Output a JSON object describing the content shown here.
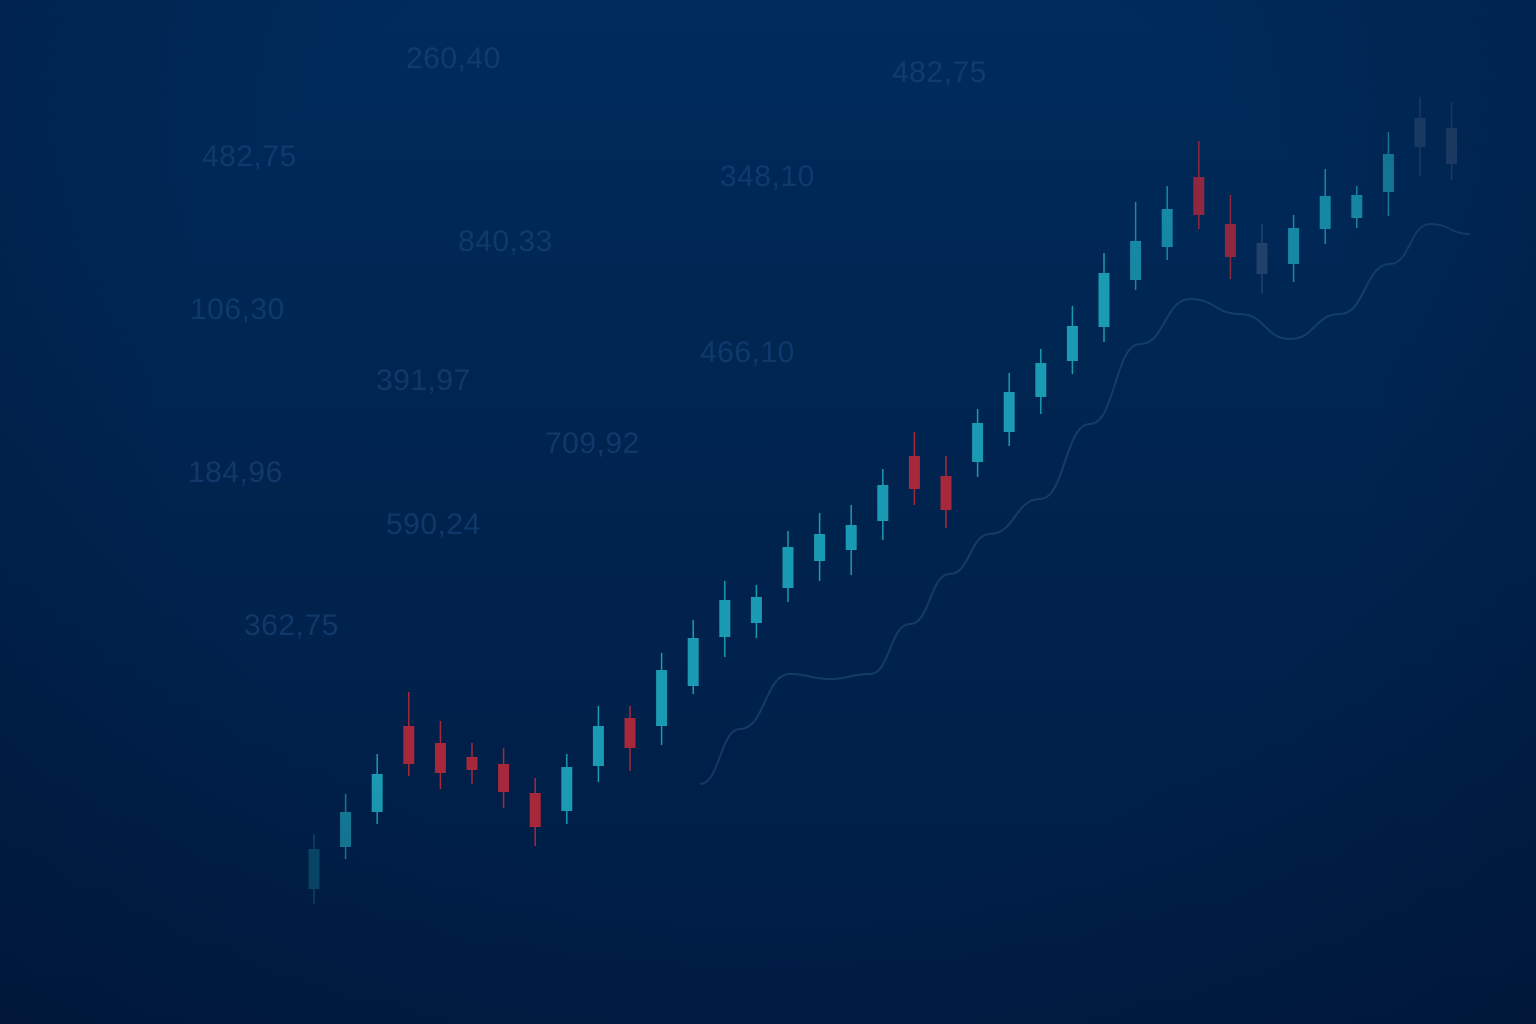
{
  "colors": {
    "up": "#1b9ab3",
    "down": "#a8283b",
    "faded": "#27456e",
    "trend": "#1f4d7c"
  },
  "background_numbers": [
    "260,40",
    "482,75",
    "482,75",
    "348,10",
    "840,33",
    "106,30",
    "466,10",
    "391,97",
    "709,92",
    "184,96",
    "590,24",
    "362,75"
  ],
  "chart_data": {
    "type": "candlestick",
    "title": "",
    "xlabel": "",
    "ylabel": "",
    "grid": false,
    "legend": "none",
    "ylim": [
      0,
      1024
    ],
    "candles": [
      {
        "open": 135,
        "close": 175,
        "high": 190,
        "low": 120
      },
      {
        "open": 177,
        "close": 212,
        "high": 230,
        "low": 165
      },
      {
        "open": 212,
        "close": 250,
        "high": 270,
        "low": 200
      },
      {
        "open": 298,
        "close": 260,
        "high": 332,
        "low": 248
      },
      {
        "open": 281,
        "close": 251,
        "high": 303,
        "low": 235
      },
      {
        "open": 267,
        "close": 254,
        "high": 281,
        "low": 240
      },
      {
        "open": 260,
        "close": 232,
        "high": 276,
        "low": 216
      },
      {
        "open": 231,
        "close": 197,
        "high": 246,
        "low": 178
      },
      {
        "open": 213,
        "close": 257,
        "high": 270,
        "low": 200
      },
      {
        "open": 258,
        "close": 298,
        "high": 318,
        "low": 242
      },
      {
        "open": 306,
        "close": 276,
        "high": 318,
        "low": 253
      },
      {
        "open": 298,
        "close": 354,
        "high": 371,
        "low": 279
      },
      {
        "open": 338,
        "close": 386,
        "high": 404,
        "low": 330
      },
      {
        "open": 387,
        "close": 424,
        "high": 443,
        "low": 367
      },
      {
        "open": 401,
        "close": 427,
        "high": 439,
        "low": 386
      },
      {
        "open": 436,
        "close": 477,
        "high": 493,
        "low": 422
      },
      {
        "open": 463,
        "close": 490,
        "high": 511,
        "low": 443
      },
      {
        "open": 474,
        "close": 499,
        "high": 519,
        "low": 449
      },
      {
        "open": 503,
        "close": 539,
        "high": 555,
        "low": 484
      },
      {
        "open": 568,
        "close": 535,
        "high": 592,
        "low": 519
      },
      {
        "open": 548,
        "close": 514,
        "high": 568,
        "low": 496
      },
      {
        "open": 562,
        "close": 601,
        "high": 615,
        "low": 547
      },
      {
        "open": 592,
        "close": 632,
        "high": 651,
        "low": 578
      },
      {
        "open": 627,
        "close": 661,
        "high": 675,
        "low": 610
      },
      {
        "open": 663,
        "close": 698,
        "high": 718,
        "low": 650
      },
      {
        "open": 697,
        "close": 751,
        "high": 771,
        "low": 682
      },
      {
        "open": 744,
        "close": 783,
        "high": 822,
        "low": 734
      },
      {
        "open": 777,
        "close": 815,
        "high": 838,
        "low": 764
      },
      {
        "open": 847,
        "close": 809,
        "high": 883,
        "low": 795
      },
      {
        "open": 800,
        "close": 767,
        "high": 829,
        "low": 745
      },
      {
        "open": 781,
        "close": 750,
        "high": 800,
        "low": 730
      },
      {
        "open": 760,
        "close": 796,
        "high": 809,
        "low": 742
      },
      {
        "open": 795,
        "close": 828,
        "high": 855,
        "low": 780
      },
      {
        "open": 806,
        "close": 829,
        "high": 838,
        "low": 796
      },
      {
        "open": 832,
        "close": 870,
        "high": 892,
        "low": 808
      },
      {
        "open": 877,
        "close": 906,
        "high": 927,
        "low": 848
      },
      {
        "open": 896,
        "close": 860,
        "high": 922,
        "low": 844
      }
    ],
    "moving_average": [
      [
        700,
        240
      ],
      [
        740,
        295
      ],
      [
        790,
        350
      ],
      [
        830,
        345
      ],
      [
        870,
        350
      ],
      [
        910,
        400
      ],
      [
        950,
        450
      ],
      [
        990,
        490
      ],
      [
        1040,
        525
      ],
      [
        1090,
        600
      ],
      [
        1140,
        680
      ],
      [
        1190,
        725
      ],
      [
        1240,
        710
      ],
      [
        1290,
        685
      ],
      [
        1340,
        710
      ],
      [
        1390,
        760
      ],
      [
        1430,
        800
      ],
      [
        1470,
        790
      ]
    ]
  }
}
